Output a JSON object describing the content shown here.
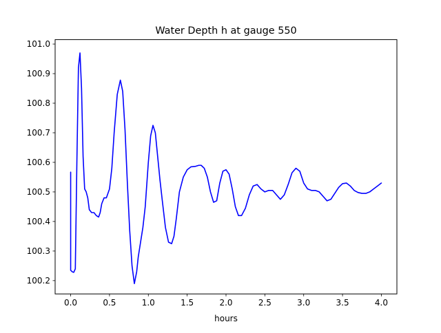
{
  "chart_data": {
    "type": "line",
    "title": "Water Depth h at gauge 550",
    "xlabel": "hours",
    "ylabel": "",
    "xlim": [
      -0.2,
      4.2
    ],
    "ylim": [
      100.155,
      101.015
    ],
    "grid": false,
    "x_ticks": [
      0.0,
      0.5,
      1.0,
      1.5,
      2.0,
      2.5,
      3.0,
      3.5,
      4.0
    ],
    "x_tick_labels": [
      "0.0",
      "0.5",
      "1.0",
      "1.5",
      "2.0",
      "2.5",
      "3.0",
      "3.5",
      "4.0"
    ],
    "y_ticks": [
      100.2,
      100.3,
      100.4,
      100.5,
      100.6,
      100.7,
      100.8,
      100.9,
      101.0
    ],
    "y_tick_labels": [
      "100.2",
      "100.3",
      "100.4",
      "100.5",
      "100.6",
      "100.7",
      "100.8",
      "100.9",
      "101.0"
    ],
    "series": [
      {
        "color": "#0000ff",
        "x": [
          0.0,
          0.0,
          0.02,
          0.04,
          0.06,
          0.08,
          0.1,
          0.12,
          0.14,
          0.16,
          0.18,
          0.2,
          0.22,
          0.24,
          0.27,
          0.3,
          0.33,
          0.36,
          0.38,
          0.4,
          0.43,
          0.46,
          0.5,
          0.53,
          0.56,
          0.6,
          0.64,
          0.67,
          0.7,
          0.73,
          0.76,
          0.79,
          0.82,
          0.85,
          0.87,
          0.9,
          0.93,
          0.96,
          1.0,
          1.03,
          1.06,
          1.09,
          1.12,
          1.15,
          1.18,
          1.22,
          1.26,
          1.3,
          1.33,
          1.36,
          1.4,
          1.45,
          1.5,
          1.55,
          1.6,
          1.65,
          1.68,
          1.72,
          1.76,
          1.8,
          1.84,
          1.88,
          1.92,
          1.96,
          2.0,
          2.04,
          2.08,
          2.12,
          2.16,
          2.2,
          2.25,
          2.3,
          2.35,
          2.4,
          2.45,
          2.5,
          2.55,
          2.6,
          2.65,
          2.7,
          2.75,
          2.8,
          2.85,
          2.9,
          2.95,
          3.0,
          3.05,
          3.1,
          3.15,
          3.2,
          3.25,
          3.3,
          3.35,
          3.4,
          3.45,
          3.5,
          3.55,
          3.6,
          3.65,
          3.7,
          3.75,
          3.8,
          3.85,
          3.9,
          3.95,
          4.0
        ],
        "y": [
          100.567,
          100.235,
          100.23,
          100.228,
          100.24,
          100.6,
          100.92,
          100.97,
          100.85,
          100.62,
          100.51,
          100.5,
          100.48,
          100.44,
          100.43,
          100.43,
          100.42,
          100.415,
          100.43,
          100.46,
          100.48,
          100.48,
          100.51,
          100.58,
          100.7,
          100.83,
          100.878,
          100.84,
          100.71,
          100.53,
          100.37,
          100.25,
          100.19,
          100.23,
          100.28,
          100.33,
          100.38,
          100.45,
          100.6,
          100.69,
          100.725,
          100.7,
          100.62,
          100.54,
          100.47,
          100.38,
          100.33,
          100.325,
          100.35,
          100.41,
          100.5,
          100.55,
          100.575,
          100.585,
          100.586,
          100.59,
          100.59,
          100.58,
          100.55,
          100.5,
          100.465,
          100.47,
          100.53,
          100.57,
          100.575,
          100.56,
          100.51,
          100.45,
          100.42,
          100.42,
          100.445,
          100.49,
          100.52,
          100.525,
          100.51,
          100.5,
          100.505,
          100.505,
          100.49,
          100.475,
          100.49,
          100.525,
          100.565,
          100.58,
          100.57,
          100.53,
          100.51,
          100.505,
          100.505,
          100.5,
          100.485,
          100.47,
          100.475,
          100.495,
          100.515,
          100.528,
          100.53,
          100.52,
          100.505,
          100.498,
          100.495,
          100.495,
          100.5,
          100.51,
          100.52,
          100.53
        ]
      }
    ]
  }
}
